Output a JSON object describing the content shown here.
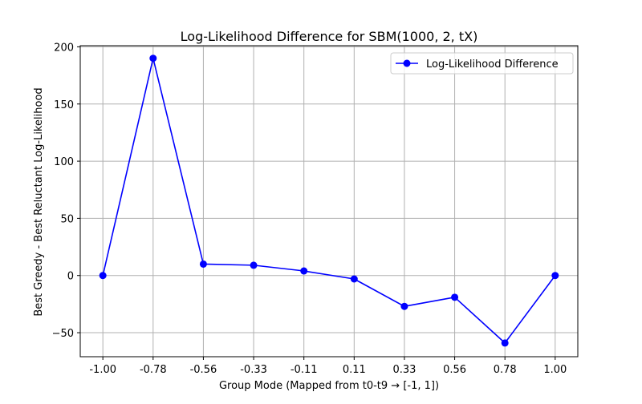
{
  "chart_data": {
    "type": "line",
    "title": "Log-Likelihood Difference for SBM(1000, 2, tX)",
    "xlabel": "Group Mode (Mapped from t0-t9 → [-1, 1])",
    "ylabel": "Best Greedy - Best Reluctant Log-Likelihood",
    "x_tick_labels": [
      "-1.00",
      "-0.78",
      "-0.56",
      "-0.33",
      "-0.11",
      "0.11",
      "0.33",
      "0.56",
      "0.78",
      "1.00"
    ],
    "x": [
      -1.0,
      -0.7778,
      -0.5556,
      -0.3333,
      -0.1111,
      0.1111,
      0.3333,
      0.5556,
      0.7778,
      1.0
    ],
    "y_ticks": [
      -50,
      0,
      50,
      100,
      150,
      200
    ],
    "y_tick_labels": [
      "−50",
      "0",
      "50",
      "100",
      "150",
      "200"
    ],
    "xlim": [
      -1.1,
      1.1
    ],
    "ylim": [
      -71,
      201
    ],
    "grid": true,
    "legend_position": "top-right",
    "series": [
      {
        "name": "Log-Likelihood Difference",
        "color": "#0000ff",
        "marker": "circle",
        "values": [
          0,
          190,
          10,
          9,
          4,
          -3,
          -27,
          -19,
          -59,
          0
        ]
      }
    ]
  }
}
